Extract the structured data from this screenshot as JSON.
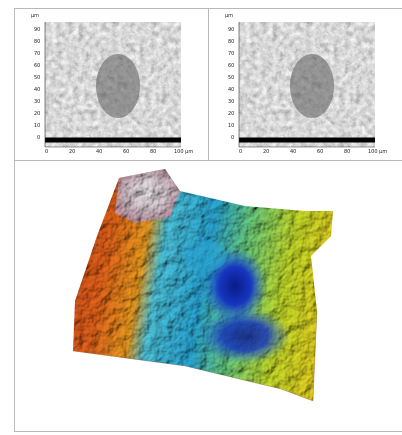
{
  "left_panel": {
    "unit": "µm",
    "y_ticks": [
      "90",
      "80",
      "70",
      "60",
      "50",
      "40",
      "30",
      "20",
      "10",
      "0"
    ],
    "x_ticks": [
      "0",
      "20",
      "40",
      "60",
      "80",
      "100 µm"
    ]
  },
  "right_panel": {
    "unit": "µm",
    "y_ticks": [
      "90",
      "80",
      "70",
      "60",
      "50",
      "40",
      "30",
      "20",
      "10",
      "0"
    ],
    "x_ticks": [
      "0",
      "20",
      "40",
      "60",
      "80",
      "100 µm"
    ]
  }
}
